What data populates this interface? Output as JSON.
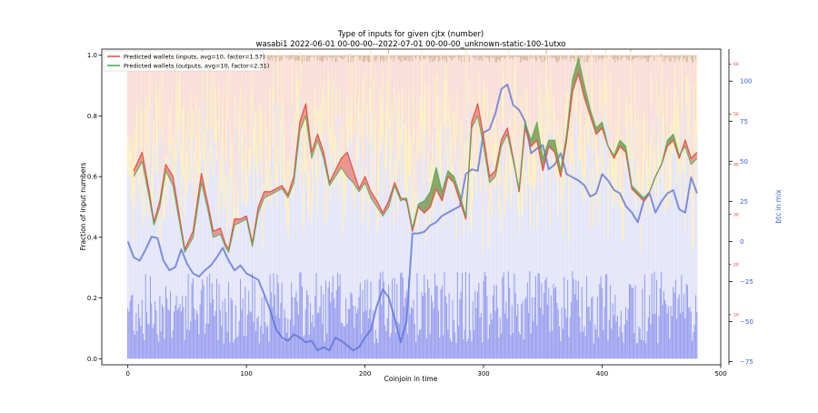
{
  "chart_data": {
    "type": "line",
    "title_line1": "Type of inputs for given cjtx (number)",
    "title_line2": "wasabi1 2022-06-01 00-00-00--2022-07-01 00-00-00_unknown-static-100-1utxo",
    "xlabel": "Coinjoin in time",
    "ylabel": "Fraction of input numbers",
    "y2label": "btc in mix",
    "xlim": [
      -22,
      500
    ],
    "ylim": [
      -0.02,
      1.02
    ],
    "x_ticks": [
      0,
      100,
      200,
      300,
      400,
      500
    ],
    "y_ticks": [
      0.0,
      0.2,
      0.4,
      0.6,
      0.8,
      1.0
    ],
    "y_red_ticks": [
      10,
      20,
      30,
      40,
      50,
      60
    ],
    "y_red_lim": [
      0,
      63
    ],
    "y_btc_ticks": [
      -75,
      -50,
      -25,
      0,
      25,
      50,
      75,
      100
    ],
    "y_btc_lim": [
      -77,
      120
    ],
    "legend_position": "top-left",
    "legend": [
      {
        "label": "Predicted wallets (inputs, avg=10, factor=1.57)",
        "color": "#e8544a"
      },
      {
        "label": "Predicted wallets (outputs, avg=10, factor=2.31)",
        "color": "#4caf50"
      }
    ],
    "n_coinjoins": 481,
    "series": [
      {
        "name": "Predicted wallets (inputs, avg=10, factor=1.57)",
        "color": "#e8544a",
        "x": [
          5,
          12,
          18,
          22,
          27,
          32,
          38,
          43,
          48,
          55,
          62,
          68,
          72,
          78,
          82,
          85,
          90,
          95,
          100,
          105,
          110,
          115,
          120,
          125,
          130,
          135,
          140,
          145,
          150,
          155,
          160,
          165,
          170,
          175,
          180,
          185,
          190,
          195,
          200,
          205,
          210,
          215,
          220,
          225,
          230,
          235,
          240,
          245,
          250,
          255,
          260,
          265,
          270,
          275,
          280,
          285,
          290,
          295,
          300,
          305,
          310,
          315,
          320,
          325,
          330,
          335,
          340,
          345,
          350,
          355,
          360,
          365,
          370,
          375,
          380,
          385,
          390,
          395,
          400,
          405,
          410,
          415,
          420,
          425,
          430,
          435,
          440,
          445,
          450,
          455,
          460,
          465,
          470,
          475,
          480
        ],
        "values": [
          0.62,
          0.68,
          0.55,
          0.45,
          0.52,
          0.64,
          0.6,
          0.48,
          0.36,
          0.42,
          0.61,
          0.5,
          0.42,
          0.43,
          0.38,
          0.36,
          0.46,
          0.46,
          0.47,
          0.38,
          0.5,
          0.55,
          0.55,
          0.56,
          0.57,
          0.54,
          0.6,
          0.78,
          0.84,
          0.68,
          0.74,
          0.68,
          0.58,
          0.62,
          0.66,
          0.68,
          0.62,
          0.56,
          0.6,
          0.55,
          0.52,
          0.48,
          0.52,
          0.58,
          0.53,
          0.52,
          0.42,
          0.5,
          0.48,
          0.5,
          0.56,
          0.52,
          0.6,
          0.58,
          0.52,
          0.46,
          0.78,
          0.84,
          0.73,
          0.6,
          0.62,
          0.72,
          0.76,
          0.66,
          0.55,
          0.76,
          0.7,
          0.72,
          0.62,
          0.7,
          0.68,
          0.6,
          0.72,
          0.88,
          0.94,
          0.86,
          0.8,
          0.74,
          0.76,
          0.7,
          0.66,
          0.7,
          0.68,
          0.56,
          0.54,
          0.52,
          0.55,
          0.6,
          0.64,
          0.7,
          0.72,
          0.66,
          0.72,
          0.66,
          0.68
        ]
      },
      {
        "name": "Predicted wallets (outputs, avg=10, factor=2.31)",
        "color": "#4caf50",
        "x": [
          5,
          12,
          18,
          22,
          27,
          32,
          38,
          43,
          48,
          55,
          62,
          68,
          72,
          78,
          82,
          85,
          90,
          95,
          100,
          105,
          110,
          115,
          120,
          125,
          130,
          135,
          140,
          145,
          150,
          155,
          160,
          165,
          170,
          175,
          180,
          185,
          190,
          195,
          200,
          205,
          210,
          215,
          220,
          225,
          230,
          235,
          240,
          245,
          250,
          255,
          260,
          265,
          270,
          275,
          280,
          285,
          290,
          295,
          300,
          305,
          310,
          315,
          320,
          325,
          330,
          335,
          340,
          345,
          350,
          355,
          360,
          365,
          370,
          375,
          380,
          385,
          390,
          395,
          400,
          405,
          410,
          415,
          420,
          425,
          430,
          435,
          440,
          445,
          450,
          455,
          460,
          465,
          470,
          475,
          480
        ],
        "values": [
          0.6,
          0.65,
          0.53,
          0.44,
          0.5,
          0.62,
          0.57,
          0.46,
          0.35,
          0.4,
          0.58,
          0.48,
          0.4,
          0.41,
          0.37,
          0.35,
          0.44,
          0.45,
          0.46,
          0.37,
          0.48,
          0.53,
          0.54,
          0.55,
          0.56,
          0.53,
          0.58,
          0.75,
          0.8,
          0.66,
          0.72,
          0.66,
          0.57,
          0.6,
          0.63,
          0.6,
          0.58,
          0.55,
          0.58,
          0.53,
          0.5,
          0.47,
          0.5,
          0.57,
          0.52,
          0.53,
          0.43,
          0.51,
          0.52,
          0.55,
          0.63,
          0.55,
          0.62,
          0.6,
          0.54,
          0.47,
          0.76,
          0.8,
          0.7,
          0.58,
          0.6,
          0.7,
          0.74,
          0.65,
          0.56,
          0.78,
          0.72,
          0.78,
          0.66,
          0.72,
          0.72,
          0.62,
          0.74,
          0.92,
          0.99,
          0.9,
          0.82,
          0.76,
          0.78,
          0.7,
          0.67,
          0.72,
          0.7,
          0.57,
          0.55,
          0.53,
          0.55,
          0.6,
          0.64,
          0.72,
          0.74,
          0.67,
          0.7,
          0.64,
          0.66
        ]
      },
      {
        "name": "btc in mix",
        "axis": "btc",
        "color": "#5a6fd6",
        "x": [
          0,
          5,
          10,
          15,
          20,
          25,
          30,
          35,
          40,
          45,
          50,
          55,
          60,
          65,
          70,
          75,
          80,
          85,
          90,
          95,
          100,
          105,
          110,
          115,
          120,
          125,
          130,
          135,
          140,
          145,
          150,
          155,
          160,
          165,
          170,
          175,
          180,
          185,
          190,
          195,
          200,
          205,
          210,
          215,
          220,
          225,
          230,
          235,
          240,
          245,
          250,
          255,
          260,
          265,
          270,
          275,
          280,
          285,
          290,
          295,
          300,
          305,
          310,
          315,
          320,
          325,
          330,
          335,
          340,
          345,
          350,
          355,
          360,
          365,
          370,
          375,
          380,
          385,
          390,
          395,
          400,
          405,
          410,
          415,
          420,
          425,
          430,
          435,
          440,
          445,
          450,
          455,
          460,
          465,
          470,
          475,
          480
        ],
        "values": [
          0,
          -10,
          -12,
          -5,
          3,
          2,
          -12,
          -18,
          -16,
          -5,
          -14,
          -20,
          -22,
          -18,
          -15,
          -10,
          -4,
          -12,
          -18,
          -15,
          -20,
          -22,
          -24,
          -33,
          -43,
          -55,
          -60,
          -62,
          -58,
          -60,
          -63,
          -62,
          -68,
          -66,
          -68,
          -60,
          -62,
          -65,
          -68,
          -66,
          -60,
          -55,
          -40,
          -30,
          -35,
          -48,
          -63,
          -50,
          5,
          5,
          6,
          10,
          12,
          16,
          18,
          20,
          22,
          42,
          45,
          44,
          68,
          70,
          80,
          95,
          98,
          85,
          82,
          75,
          55,
          58,
          60,
          45,
          48,
          55,
          42,
          40,
          38,
          35,
          28,
          30,
          42,
          38,
          32,
          30,
          22,
          18,
          12,
          25,
          30,
          18,
          25,
          30,
          32,
          20,
          18,
          40,
          30
        ]
      }
    ]
  }
}
